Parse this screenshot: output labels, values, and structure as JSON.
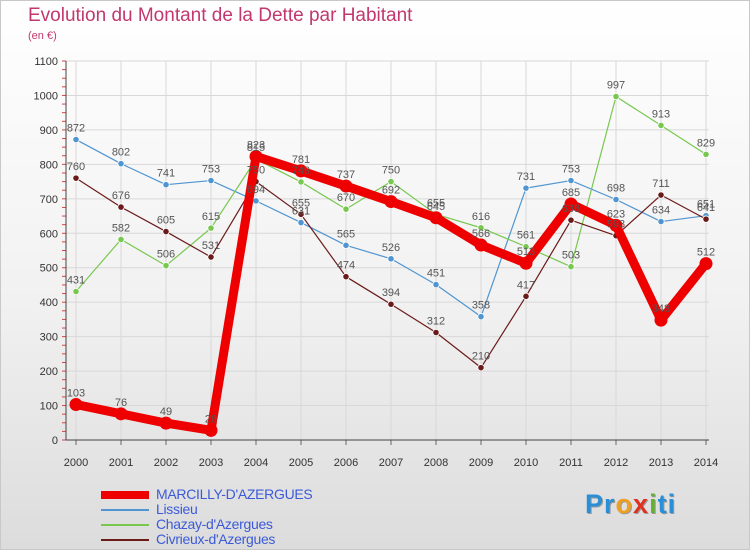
{
  "chart_data": {
    "type": "line",
    "title": "Evolution du Montant de la Dette par Habitant",
    "subtitle": "(en €)",
    "xlabel": "",
    "ylabel": "",
    "ylim": [
      0,
      1100
    ],
    "yticks": [
      0,
      100,
      200,
      300,
      400,
      500,
      600,
      700,
      800,
      900,
      1000,
      1100
    ],
    "categories": [
      "2000",
      "2001",
      "2002",
      "2003",
      "2004",
      "2005",
      "2006",
      "2007",
      "2008",
      "2009",
      "2010",
      "2011",
      "2012",
      "2013",
      "2014"
    ],
    "grid": true,
    "legend_position": "bottom-left",
    "series": [
      {
        "name": "MARCILLY-D'AZERGUES",
        "color": "#ee0000",
        "highlight": true,
        "values": [
          103,
          76,
          49,
          28,
          823,
          781,
          737,
          692,
          645,
          566,
          513,
          685,
          623,
          348,
          512
        ]
      },
      {
        "name": "Lissieu",
        "color": "#4f95d1",
        "values": [
          872,
          802,
          741,
          753,
          694,
          631,
          565,
          526,
          451,
          358,
          731,
          753,
          698,
          634,
          651
        ]
      },
      {
        "name": "Chazay-d'Azergues",
        "color": "#78c850",
        "values": [
          431,
          582,
          506,
          615,
          815,
          749,
          670,
          750,
          655,
          616,
          561,
          503,
          997,
          913,
          829
        ]
      },
      {
        "name": "Civrieux-d'Azergues",
        "color": "#6b1a1a",
        "values": [
          760,
          676,
          605,
          531,
          750,
          655,
          474,
          394,
          312,
          210,
          417,
          638,
          593,
          711,
          641
        ]
      }
    ]
  },
  "legend": [
    {
      "label": "MARCILLY-D'AZERGUES",
      "color": "#ee0000"
    },
    {
      "label": "Lissieu",
      "color": "#4f95d1"
    },
    {
      "label": "Chazay-d'Azergues",
      "color": "#78c850"
    },
    {
      "label": "Civrieux-d'Azergues",
      "color": "#6b1a1a"
    }
  ],
  "brand": {
    "letters": [
      "P",
      "r",
      "o",
      "x",
      "i",
      "ti"
    ]
  }
}
